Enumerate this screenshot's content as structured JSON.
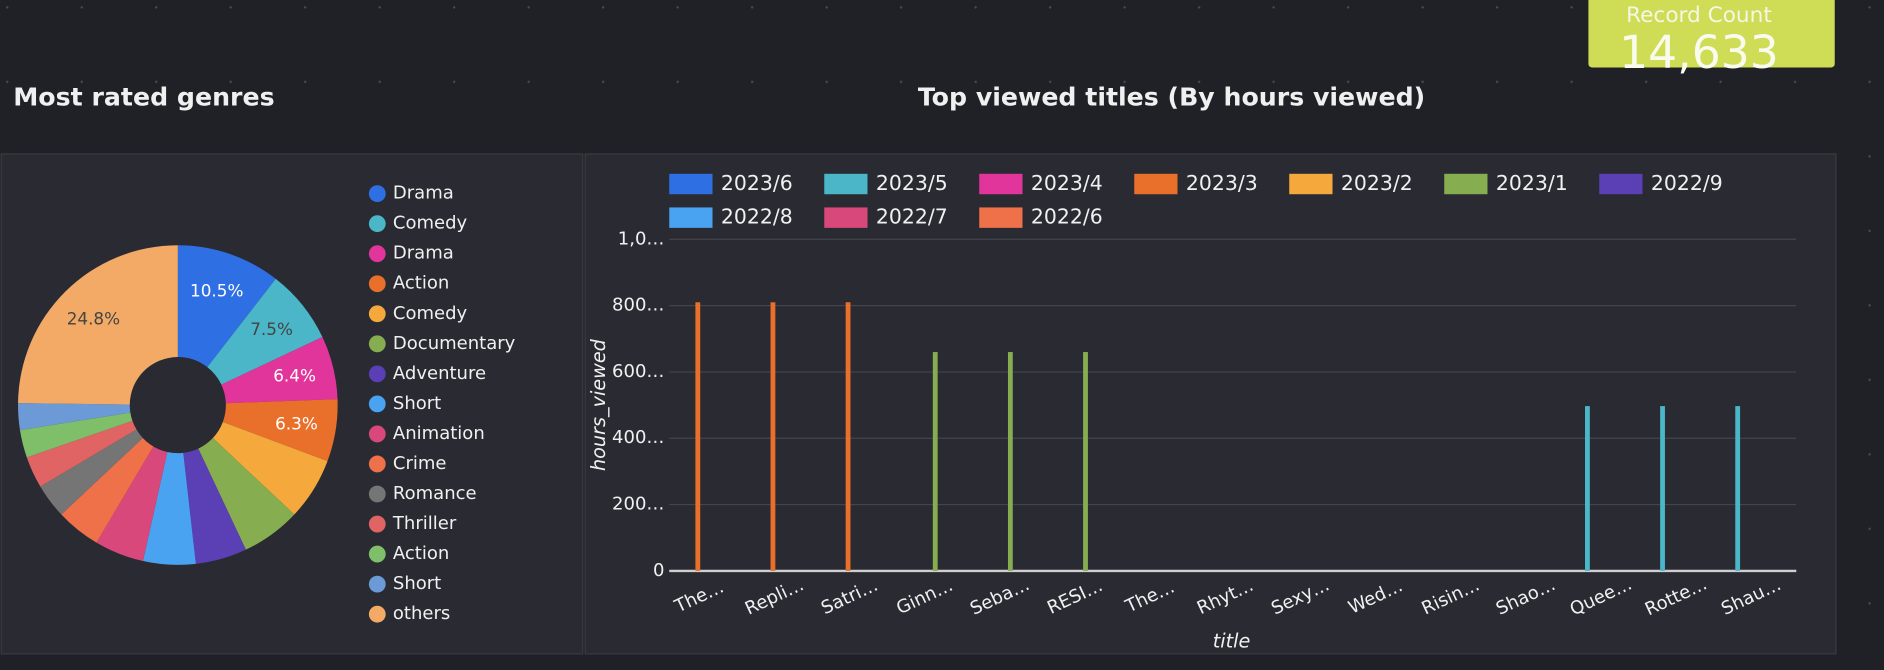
{
  "record_count": {
    "label": "Record Count",
    "value": "14,633"
  },
  "chart_data": [
    {
      "type": "pie",
      "title": "Most rated genres",
      "categories": [
        "Drama",
        "Comedy",
        "Drama",
        "Action",
        "Comedy",
        "Documentary",
        "Adventure",
        "Short",
        "Animation",
        "Crime",
        "Romance",
        "Thriller",
        "Action",
        "Short",
        "others"
      ],
      "values": [
        10.5,
        7.5,
        6.4,
        6.3,
        6.3,
        6.0,
        5.2,
        5.3,
        5.0,
        4.5,
        3.5,
        3.2,
        2.8,
        2.7,
        24.8
      ],
      "value_labels": [
        "10.5%",
        "7.5%",
        "6.4%",
        "6.3%",
        null,
        null,
        null,
        null,
        null,
        null,
        null,
        null,
        null,
        null,
        "24.8%"
      ],
      "colors": [
        "#2f6fe4",
        "#4ab6c8",
        "#e2359b",
        "#e8702a",
        "#f5a93c",
        "#86ad4f",
        "#5b3fb5",
        "#4aa3f0",
        "#d9487a",
        "#ef7149",
        "#757575",
        "#e06464",
        "#7fbf6a",
        "#6b9ad6",
        "#f2aa66"
      ],
      "donut": true
    },
    {
      "type": "bar",
      "title": "Top viewed titles (By hours viewed)",
      "x_label": "title",
      "y_label": "hours_viewed",
      "categories": [
        "The…",
        "Repli…",
        "Satri…",
        "Ginn…",
        "Seba…",
        "RESI…",
        "The…",
        "Rhyt…",
        "Sexy…",
        "Wed…",
        "Risin…",
        "Shao…",
        "Quee…",
        "Rotte…",
        "Shau…"
      ],
      "series": [
        {
          "name": "2023/6",
          "color": "#2f6fe4",
          "values": [
            null,
            null,
            null,
            null,
            null,
            null,
            null,
            null,
            null,
            null,
            null,
            null,
            null,
            null,
            null
          ]
        },
        {
          "name": "2023/5",
          "color": "#4ab6c8",
          "values": [
            null,
            null,
            null,
            null,
            null,
            null,
            null,
            null,
            null,
            null,
            null,
            null,
            497,
            497,
            497
          ]
        },
        {
          "name": "2023/4",
          "color": "#e2359b",
          "values": [
            null,
            null,
            null,
            null,
            null,
            null,
            null,
            null,
            null,
            null,
            null,
            null,
            null,
            null,
            null
          ]
        },
        {
          "name": "2023/3",
          "color": "#e8702a",
          "values": [
            810,
            810,
            810,
            null,
            null,
            null,
            null,
            null,
            null,
            null,
            null,
            null,
            null,
            null,
            null
          ]
        },
        {
          "name": "2023/2",
          "color": "#f5a93c",
          "values": [
            null,
            null,
            null,
            null,
            null,
            null,
            null,
            null,
            null,
            null,
            null,
            null,
            null,
            null,
            null
          ]
        },
        {
          "name": "2023/1",
          "color": "#86ad4f",
          "values": [
            null,
            null,
            null,
            660,
            660,
            660,
            null,
            null,
            null,
            null,
            null,
            null,
            null,
            null,
            null
          ]
        },
        {
          "name": "2022/9",
          "color": "#5b3fb5",
          "values": [
            null,
            null,
            null,
            null,
            null,
            null,
            null,
            null,
            null,
            null,
            null,
            null,
            null,
            null,
            null
          ]
        },
        {
          "name": "2022/8",
          "color": "#4aa3f0",
          "values": [
            null,
            null,
            null,
            null,
            null,
            null,
            null,
            null,
            null,
            null,
            null,
            null,
            null,
            null,
            null
          ]
        },
        {
          "name": "2022/7",
          "color": "#d9487a",
          "values": [
            null,
            null,
            null,
            null,
            null,
            null,
            null,
            null,
            null,
            null,
            null,
            null,
            null,
            null,
            null
          ]
        },
        {
          "name": "2022/6",
          "color": "#ef7149",
          "values": [
            null,
            null,
            null,
            null,
            null,
            null,
            null,
            null,
            null,
            null,
            null,
            null,
            null,
            null,
            null
          ]
        }
      ],
      "ylim": [
        0,
        1000
      ],
      "yticks": [
        0,
        {
          "value": 200,
          "label": "200…"
        },
        {
          "value": 400,
          "label": "400…"
        },
        {
          "value": 600,
          "label": "600…"
        },
        {
          "value": 800,
          "label": "800…"
        },
        {
          "value": 1000,
          "label": "1,0…"
        }
      ],
      "grid": true
    }
  ]
}
